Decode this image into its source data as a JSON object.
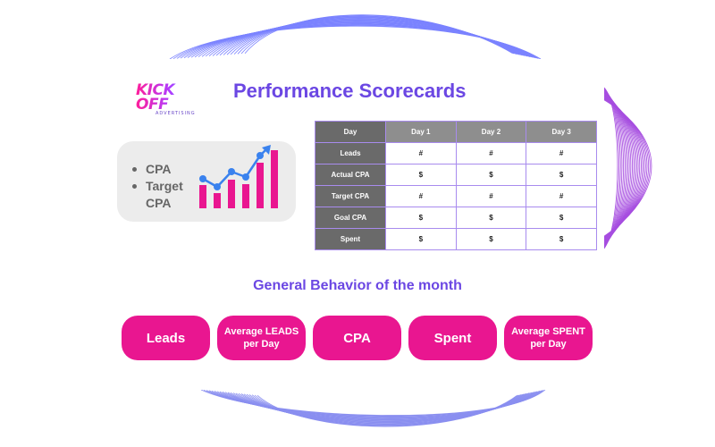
{
  "logo": {
    "text": "KICK OFF",
    "subtext": "ADVERTISING"
  },
  "title": "Performance Scorecards",
  "kpi": {
    "items": [
      "CPA",
      "Target CPA"
    ],
    "icon": "growth-bar-chart-icon"
  },
  "table": {
    "header_label": "Day",
    "columns": [
      "Day 1",
      "Day 2",
      "Day 3"
    ],
    "rows": [
      {
        "label": "Leads",
        "values": [
          "#",
          "#",
          "#"
        ]
      },
      {
        "label": "Actual CPA",
        "values": [
          "$",
          "$",
          "$"
        ]
      },
      {
        "label": "Target CPA",
        "values": [
          "#",
          "#",
          "#"
        ]
      },
      {
        "label": "Goal CPA",
        "values": [
          "$",
          "$",
          "$"
        ]
      },
      {
        "label": "Spent",
        "values": [
          "$",
          "$",
          "$"
        ]
      }
    ]
  },
  "subtitle": "General Behavior of the month",
  "buttons": [
    {
      "label": "Leads"
    },
    {
      "label": "Average LEADS per Day"
    },
    {
      "label": "CPA"
    },
    {
      "label": "Spent"
    },
    {
      "label": "Average SPENT per Day"
    }
  ],
  "colors": {
    "accent": "#6b47e3",
    "pill": "#e91690",
    "header_dark": "#6a6a6a",
    "header_light": "#8e8e8e",
    "border": "#a88bee"
  }
}
